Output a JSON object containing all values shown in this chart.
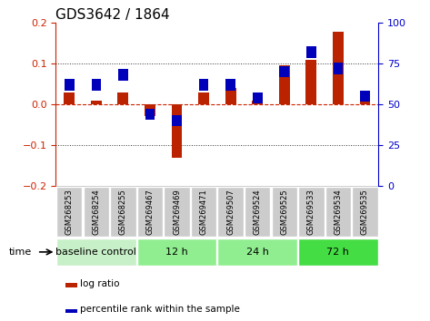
{
  "title": "GDS3642 / 1864",
  "samples": [
    "GSM268253",
    "GSM268254",
    "GSM268255",
    "GSM269467",
    "GSM269469",
    "GSM269471",
    "GSM269507",
    "GSM269524",
    "GSM269525",
    "GSM269533",
    "GSM269534",
    "GSM269535"
  ],
  "log_ratio": [
    0.028,
    0.01,
    0.03,
    -0.028,
    -0.13,
    0.028,
    0.04,
    0.01,
    0.095,
    0.108,
    0.178,
    0.01
  ],
  "percentile_rank": [
    62,
    62,
    68,
    44,
    40,
    62,
    62,
    54,
    70,
    82,
    72,
    55
  ],
  "groups": [
    {
      "label": "baseline control",
      "start": 0,
      "end": 3,
      "color": "#c8f0c8"
    },
    {
      "label": "12 h",
      "start": 3,
      "end": 6,
      "color": "#90ee90"
    },
    {
      "label": "24 h",
      "start": 6,
      "end": 9,
      "color": "#90ee90"
    },
    {
      "label": "72 h",
      "start": 9,
      "end": 12,
      "color": "#44dd44"
    }
  ],
  "ylim_left": [
    -0.2,
    0.2
  ],
  "ylim_right": [
    0,
    100
  ],
  "yticks_left": [
    -0.2,
    -0.1,
    0.0,
    0.1,
    0.2
  ],
  "yticks_right": [
    0,
    25,
    50,
    75,
    100
  ],
  "bar_width": 0.4,
  "bar_color_red": "#bb2200",
  "bar_color_blue": "#0000bb",
  "dotted_color": "#333333",
  "dashed_color": "#cc2200",
  "bg_color": "#ffffff",
  "plot_bg_color": "#ffffff",
  "left_axis_color": "#cc2200",
  "right_axis_color": "#0000cc",
  "sample_bg": "#cccccc",
  "title_fontsize": 11,
  "tick_fontsize": 8,
  "sample_fontsize": 6,
  "group_fontsize": 8
}
